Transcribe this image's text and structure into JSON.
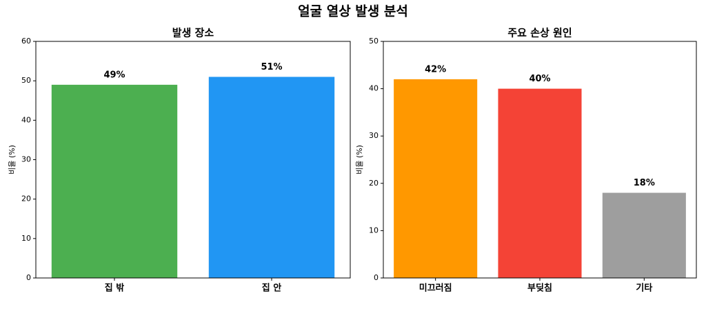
{
  "title": "얼굴 열상 발생 분석",
  "chart_data": [
    {
      "type": "bar",
      "title": "발생 장소",
      "ylabel": "비율 (%)",
      "categories": [
        "집 밖",
        "집 안"
      ],
      "values": [
        49,
        51
      ],
      "value_labels": [
        "49%",
        "51%"
      ],
      "colors": [
        "#4caf50",
        "#2196f3"
      ],
      "ylim": [
        0,
        60
      ],
      "yticks": [
        0,
        10,
        20,
        30,
        40,
        50,
        60
      ]
    },
    {
      "type": "bar",
      "title": "주요 손상 원인",
      "ylabel": "비율 (%)",
      "categories": [
        "미끄러짐",
        "부딪침",
        "기타"
      ],
      "values": [
        42,
        40,
        18
      ],
      "value_labels": [
        "42%",
        "40%",
        "18%"
      ],
      "colors": [
        "#ff9800",
        "#f44336",
        "#9e9e9e"
      ],
      "ylim": [
        0,
        50
      ],
      "yticks": [
        0,
        10,
        20,
        30,
        40,
        50
      ]
    }
  ]
}
